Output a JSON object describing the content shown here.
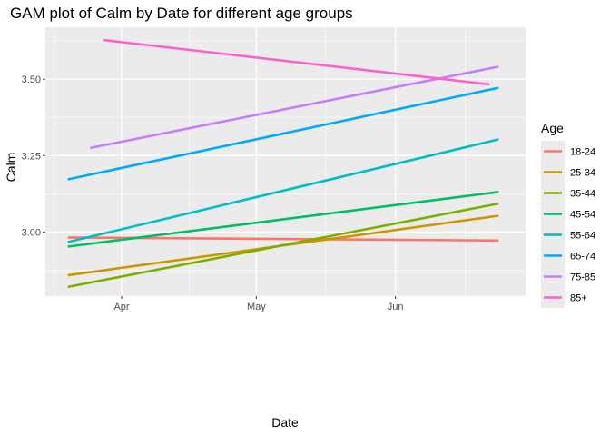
{
  "chart_data": {
    "type": "line",
    "title": "GAM plot of Calm by Date for different age groups",
    "xlabel": "Date",
    "ylabel": "Calm",
    "x_ticks": [
      "Apr",
      "May",
      "Jun"
    ],
    "y_ticks": [
      "3.00",
      "3.25",
      "3.50"
    ],
    "y_tick_values": [
      3.0,
      3.25,
      3.5
    ],
    "ylim": [
      2.79,
      3.67
    ],
    "xlim": [
      "2020-03-15",
      "2020-06-30"
    ],
    "grid": true,
    "legend": {
      "title": "Age",
      "placement": "right"
    },
    "series": [
      {
        "name": "18-24",
        "color": "#F8766D",
        "x": [
          "2020-03-20",
          "2020-06-24"
        ],
        "y": [
          2.982,
          2.972
        ]
      },
      {
        "name": "25-34",
        "color": "#CD9600",
        "x": [
          "2020-03-20",
          "2020-06-24"
        ],
        "y": [
          2.858,
          3.053
        ]
      },
      {
        "name": "35-44",
        "color": "#7CAE00",
        "x": [
          "2020-03-20",
          "2020-06-24"
        ],
        "y": [
          2.82,
          3.093
        ]
      },
      {
        "name": "45-54",
        "color": "#00BE67",
        "x": [
          "2020-03-20",
          "2020-06-24"
        ],
        "y": [
          2.952,
          3.131
        ]
      },
      {
        "name": "55-64",
        "color": "#00BFC4",
        "x": [
          "2020-03-20",
          "2020-06-24"
        ],
        "y": [
          2.967,
          3.303
        ]
      },
      {
        "name": "65-74",
        "color": "#00A9FF",
        "x": [
          "2020-03-20",
          "2020-06-24"
        ],
        "y": [
          3.172,
          3.472
        ]
      },
      {
        "name": "75-85",
        "color": "#C77CFF",
        "x": [
          "2020-03-25",
          "2020-06-24"
        ],
        "y": [
          3.275,
          3.541
        ]
      },
      {
        "name": "85+",
        "color": "#FF61CC",
        "x": [
          "2020-03-28",
          "2020-06-22"
        ],
        "y": [
          3.628,
          3.483
        ]
      }
    ]
  }
}
